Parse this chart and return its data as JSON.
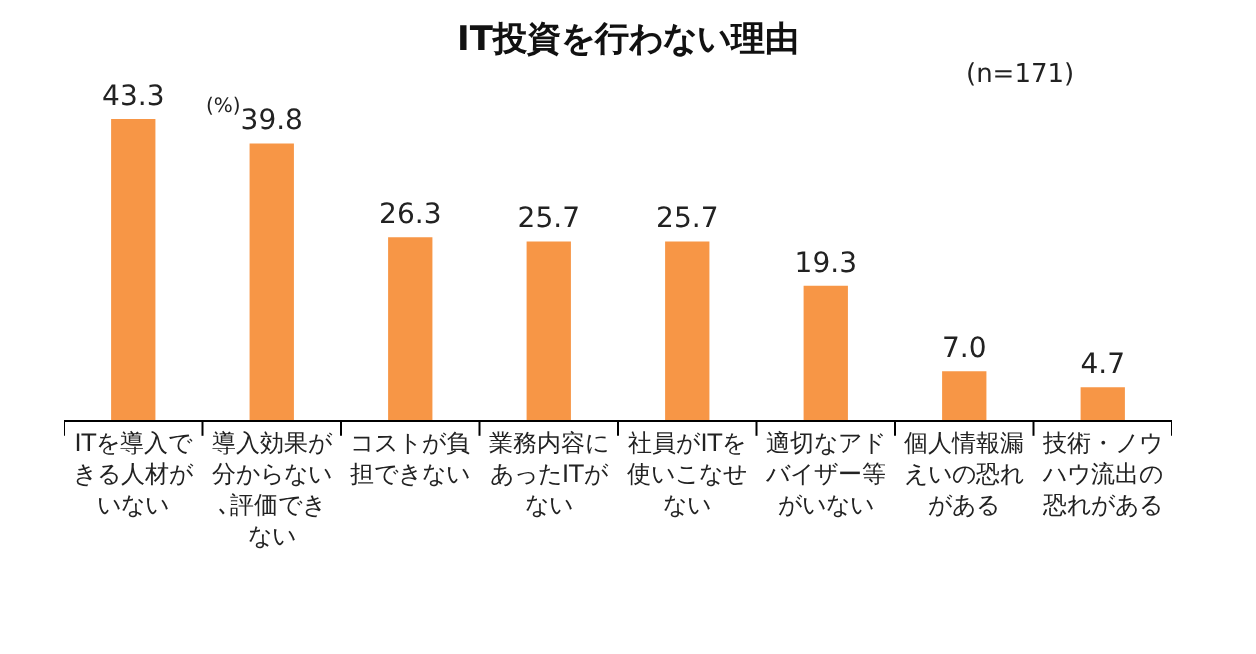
{
  "chart_data": {
    "type": "bar",
    "title": "IT投資を行わない理由",
    "categories": [
      "ITを導入できる人材がいない",
      "導入効果が分からない､評価できない",
      "コストが負担できない",
      "業務内容にあったITがない",
      "社員がITを使いこなせない",
      "適切なアドバイザー等がいない",
      "個人情報漏えいの恐れがある",
      "技術・ノウハウ流出の恐れがある"
    ],
    "values": [
      43.3,
      39.8,
      26.3,
      25.7,
      25.7,
      19.3,
      7.0,
      4.7
    ],
    "value_labels": [
      "43.3",
      "39.8",
      "26.3",
      "25.7",
      "25.7",
      "19.3",
      "7.0",
      "4.7"
    ],
    "color": "#f79646",
    "annotations": [
      "(%)",
      "(n=171)"
    ]
  }
}
